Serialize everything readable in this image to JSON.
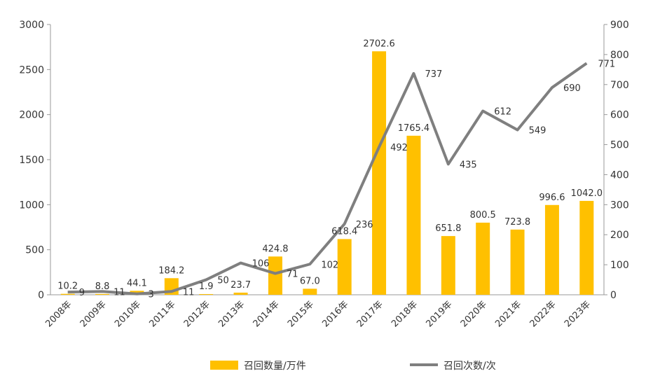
{
  "chart_data": {
    "type": "bar",
    "categories": [
      "2008年",
      "2009年",
      "2010年",
      "2011年",
      "2012年",
      "2013年",
      "2014年",
      "2015年",
      "2016年",
      "2017年",
      "2018年",
      "2019年",
      "2020年",
      "2021年",
      "2022年",
      "2023年"
    ],
    "series": [
      {
        "name": "召回数量/万件",
        "type": "bar",
        "axis": "left",
        "color": "#FFC000",
        "values": [
          10.2,
          8.8,
          44.1,
          184.2,
          1.9,
          23.7,
          424.8,
          67.0,
          618.4,
          2702.6,
          1765.4,
          651.8,
          800.5,
          723.8,
          996.6,
          1042.0
        ],
        "labels": [
          "10.2",
          "8.8",
          "44.1",
          "184.2",
          "1.9",
          "23.7",
          "424.8",
          "67.0",
          "618.4",
          "2702.6",
          "1765.4",
          "651.8",
          "800.5",
          "723.8",
          "996.6",
          "1042.0"
        ]
      },
      {
        "name": "召回次数/次",
        "type": "line",
        "axis": "right",
        "color": "#7F7F7F",
        "values": [
          9,
          11,
          3,
          11,
          50,
          106,
          71,
          102,
          236,
          492,
          737,
          435,
          612,
          549,
          690,
          771
        ],
        "labels": [
          "9",
          "11",
          "3",
          "11",
          "50",
          "106",
          "71",
          "102",
          "236",
          "492",
          "737",
          "435",
          "612",
          "549",
          "690",
          "771"
        ]
      }
    ],
    "y_left": {
      "range": [
        0,
        3000
      ],
      "ticks": [
        "0",
        "500",
        "1000",
        "1500",
        "2000",
        "2500",
        "3000"
      ]
    },
    "y_right": {
      "range": [
        0,
        900
      ],
      "ticks": [
        "0",
        "100",
        "200",
        "300",
        "400",
        "500",
        "600",
        "700",
        "800",
        "900"
      ]
    },
    "grid": false,
    "legend": "bottom"
  }
}
